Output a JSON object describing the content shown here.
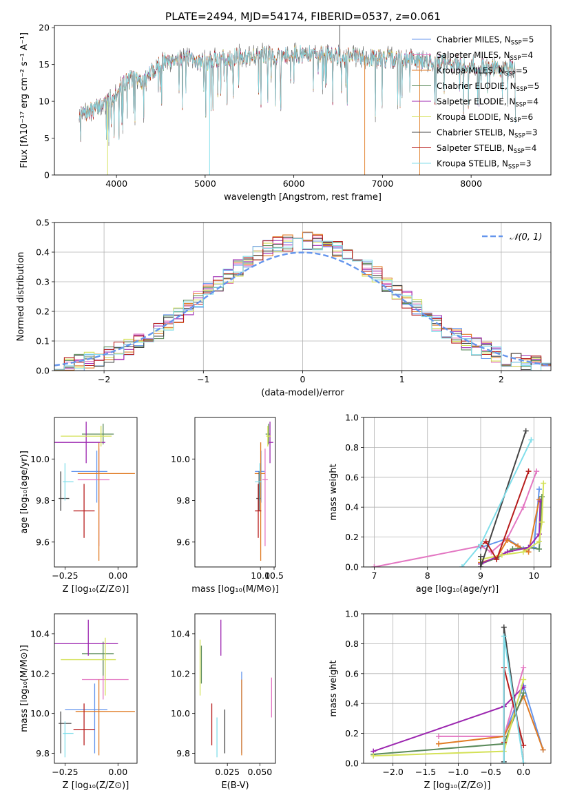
{
  "figure_title": "PLATE=2494, MJD=54174, FIBERID=0537, z=0.061",
  "series": [
    {
      "name": "Chabrier MILES",
      "nssp": "5",
      "color": "#6495ed"
    },
    {
      "name": "Salpeter MILES",
      "nssp": "4",
      "color": "#e377c2"
    },
    {
      "name": "Kroupa MILES",
      "nssp": "5",
      "color": "#e07b24"
    },
    {
      "name": "Chabrier ELODIE",
      "nssp": "5",
      "color": "#5a8a5a"
    },
    {
      "name": "Salpeter ELODIE",
      "nssp": "4",
      "color": "#9c27b0"
    },
    {
      "name": "Kroupa ELODIE",
      "nssp": "6",
      "color": "#d4e157"
    },
    {
      "name": "Chabrier STELIB",
      "nssp": "3",
      "color": "#444444"
    },
    {
      "name": "Salpeter STELIB",
      "nssp": "4",
      "color": "#b71c1c"
    },
    {
      "name": "Kroupa STELIB",
      "nssp": "3",
      "color": "#80deea"
    }
  ],
  "chart_data": [
    {
      "id": "spectrum",
      "type": "line",
      "xlabel": "wavelength [Angstrom, rest frame]",
      "ylabel": "Flux [fλ10⁻¹⁷ erg cm⁻² s⁻¹ A⁻¹]",
      "xlim": [
        3300,
        8900
      ],
      "ylim": [
        0,
        20.3
      ],
      "xticks": [
        4000,
        5000,
        6000,
        7000,
        8000
      ],
      "yticks": [
        0,
        5,
        10,
        15,
        20
      ],
      "grid": false,
      "legend": "right",
      "continuum": {
        "x": [
          3560,
          3700,
          3800,
          3900,
          4000,
          4100,
          4200,
          4300,
          4400,
          4500,
          4600,
          4800,
          5000,
          5200,
          5400,
          5600,
          5800,
          6000,
          6200,
          6400,
          6600,
          6800,
          7000,
          7200,
          7400,
          7600,
          7800,
          8000,
          8200,
          8400
        ],
        "y": [
          8.0,
          8.5,
          9.3,
          10.0,
          11.2,
          12.6,
          13.2,
          12.6,
          14.0,
          15.2,
          15.8,
          15.7,
          15.3,
          15.9,
          16.0,
          16.2,
          16.3,
          16.4,
          16.3,
          16.3,
          16.2,
          16.0,
          15.8,
          15.7,
          15.6,
          15.3,
          15.1,
          14.8,
          14.6,
          14.3
        ]
      },
      "x_start": 3580,
      "x_end": 8500
    },
    {
      "id": "residuals",
      "type": "histogram",
      "xlabel": "(data-model)/error",
      "ylabel": "Normed distribution",
      "xlim": [
        -2.5,
        2.5
      ],
      "ylim": [
        0,
        0.5
      ],
      "xticks": [
        -2,
        -1,
        0,
        1,
        2
      ],
      "yticks": [
        0.0,
        0.1,
        0.2,
        0.3,
        0.4,
        0.5
      ],
      "grid": true,
      "legend": "top-right",
      "reference": {
        "name": "𝒩(0, 1)",
        "mean": 0,
        "sigma": 1,
        "color": "#6495ed"
      },
      "bin_width": 0.1
    },
    {
      "id": "age_vs_Z",
      "type": "scatter",
      "xlabel": "Z [log₁₀(Z/Z⊙)]",
      "ylabel": "age  [log₁₀(age/yr)]",
      "xlim": [
        -0.3,
        0.09
      ],
      "ylim": [
        9.48,
        10.2
      ],
      "xticks": [
        -0.25,
        0.0
      ],
      "yticks": [
        9.6,
        9.8,
        10.0
      ],
      "points": [
        {
          "s": 0,
          "x": -0.1,
          "xe": [
            0.12,
            0.05
          ],
          "y": 9.94,
          "ye": [
            0.15,
            0.1
          ]
        },
        {
          "s": 1,
          "x": -0.09,
          "xe": [
            0.1,
            0.05
          ],
          "y": 9.9,
          "ye": [
            0.32,
            0.15
          ]
        },
        {
          "s": 2,
          "x": -0.09,
          "xe": [
            0.1,
            0.17
          ],
          "y": 9.93,
          "ye": [
            0.42,
            0.15
          ]
        },
        {
          "s": 3,
          "x": -0.07,
          "xe": [
            0.1,
            0.05
          ],
          "y": 10.12,
          "ye": [
            0.05,
            0.05
          ]
        },
        {
          "s": 4,
          "x": -0.15,
          "xe": [
            0.15,
            0.09
          ],
          "y": 10.08,
          "ye": [
            0.1,
            0.1
          ]
        },
        {
          "s": 5,
          "x": -0.08,
          "xe": [
            0.19,
            0.05
          ],
          "y": 10.11,
          "ye": [
            0.05,
            0.05
          ]
        },
        {
          "s": 6,
          "x": -0.27,
          "xe": [
            0.01,
            0.04
          ],
          "y": 9.81,
          "ye": [
            0.06,
            0.13
          ]
        },
        {
          "s": 7,
          "x": -0.16,
          "xe": [
            0.05,
            0.05
          ],
          "y": 9.75,
          "ye": [
            0.13,
            0.13
          ]
        },
        {
          "s": 8,
          "x": -0.25,
          "xe": [
            0.01,
            0.04
          ],
          "y": 9.89,
          "ye": [
            0.09,
            0.09
          ]
        }
      ]
    },
    {
      "id": "age_vs_mass",
      "type": "scatter",
      "xlabel": "mass [log₁₀(M/M⊙)]",
      "ylabel": "",
      "xlim": [
        7.6,
        10.55
      ],
      "ylim": [
        9.48,
        10.2
      ],
      "xticks": [
        10.0,
        10.5
      ],
      "yticks": [
        9.6,
        9.8,
        10.0
      ],
      "points": [
        {
          "s": 0,
          "x": 10.02,
          "xe": [
            0.22,
            0.13
          ],
          "y": 9.94,
          "ye": [
            0.15,
            0.1
          ]
        },
        {
          "s": 1,
          "x": 10.17,
          "xe": [
            0.1,
            0.1
          ],
          "y": 9.9,
          "ye": [
            0.32,
            0.15
          ]
        },
        {
          "s": 2,
          "x": 10.01,
          "xe": [
            0.22,
            0.16
          ],
          "y": 9.93,
          "ye": [
            0.42,
            0.15
          ]
        },
        {
          "s": 3,
          "x": 10.3,
          "xe": [
            0.11,
            0.06
          ],
          "y": 10.12,
          "ye": [
            0.05,
            0.05
          ]
        },
        {
          "s": 4,
          "x": 10.35,
          "xe": [
            0.06,
            0.12
          ],
          "y": 10.08,
          "ye": [
            0.1,
            0.1
          ]
        },
        {
          "s": 5,
          "x": 10.27,
          "xe": [
            0.06,
            0.11
          ],
          "y": 10.11,
          "ye": [
            0.05,
            0.05
          ]
        },
        {
          "s": 6,
          "x": 9.95,
          "xe": [
            0.1,
            0.06
          ],
          "y": 9.81,
          "ye": [
            0.06,
            0.13
          ]
        },
        {
          "s": 7,
          "x": 9.92,
          "xe": [
            0.12,
            0.11
          ],
          "y": 9.75,
          "ye": [
            0.13,
            0.13
          ]
        },
        {
          "s": 8,
          "x": 9.98,
          "xe": [
            0.18,
            0.06
          ],
          "y": 9.89,
          "ye": [
            0.09,
            0.09
          ]
        }
      ]
    },
    {
      "id": "weight_vs_age",
      "type": "line",
      "xlabel": "age  [log₁₀(age/yr)]",
      "ylabel": "mass weight",
      "xlim": [
        6.8,
        10.32
      ],
      "ylim": [
        0,
        1.0
      ],
      "xticks": [
        7,
        8,
        9,
        10
      ],
      "yticks": [
        0.0,
        0.2,
        0.4,
        0.6,
        0.8,
        1.0
      ],
      "grid": true,
      "lines": [
        {
          "s": 0,
          "x": [
            9.0,
            9.5,
            9.8,
            10.0,
            10.1
          ],
          "y": [
            0.13,
            0.19,
            0.12,
            0.13,
            0.52
          ]
        },
        {
          "s": 1,
          "x": [
            7.0,
            9.0,
            9.2,
            9.5,
            9.8,
            10.05
          ],
          "y": [
            0.0,
            0.14,
            0.1,
            0.19,
            0.4,
            0.64
          ]
        },
        {
          "s": 2,
          "x": [
            9.0,
            9.3,
            9.5,
            9.7,
            9.9,
            10.1
          ],
          "y": [
            0.03,
            0.06,
            0.18,
            0.14,
            0.1,
            0.45
          ]
        },
        {
          "s": 3,
          "x": [
            9.0,
            9.3,
            9.6,
            9.9,
            10.1,
            10.15
          ],
          "y": [
            0.02,
            0.06,
            0.12,
            0.13,
            0.12,
            0.47
          ]
        },
        {
          "s": 4,
          "x": [
            9.0,
            9.5,
            9.9,
            10.1,
            10.12
          ],
          "y": [
            0.02,
            0.1,
            0.13,
            0.22,
            0.44
          ]
        },
        {
          "s": 5,
          "x": [
            9.0,
            9.4,
            9.8,
            10.1,
            10.15,
            10.18
          ],
          "y": [
            0.05,
            0.08,
            0.1,
            0.17,
            0.3,
            0.56
          ]
        },
        {
          "s": 6,
          "x": [
            9.0,
            9.0,
            9.85
          ],
          "y": [
            0.07,
            0.0,
            0.91
          ]
        },
        {
          "s": 7,
          "x": [
            9.0,
            9.1,
            9.3,
            9.9
          ],
          "y": [
            0.14,
            0.17,
            0.05,
            0.64
          ]
        },
        {
          "s": 8,
          "x": [
            8.65,
            9.0,
            9.95
          ],
          "y": [
            0.0,
            0.15,
            0.85
          ]
        }
      ]
    },
    {
      "id": "mass_vs_Z",
      "type": "scatter",
      "xlabel": "Z [log₁₀(Z/Z⊙)]",
      "ylabel": "mass [log₁₀(M/M⊙)]",
      "xlim": [
        -0.3,
        0.09
      ],
      "ylim": [
        9.75,
        10.5
      ],
      "xticks": [
        -0.25,
        0.0
      ],
      "yticks": [
        9.8,
        10.0,
        10.2,
        10.4
      ],
      "points": [
        {
          "s": 0,
          "x": -0.11,
          "xe": [
            0.14,
            0.06
          ],
          "y": 10.02,
          "ye": [
            0.22,
            0.13
          ]
        },
        {
          "s": 1,
          "x": -0.07,
          "xe": [
            0.1,
            0.12
          ],
          "y": 10.17,
          "ye": [
            0.1,
            0.1
          ]
        },
        {
          "s": 2,
          "x": -0.09,
          "xe": [
            0.11,
            0.17
          ],
          "y": 10.01,
          "ye": [
            0.22,
            0.16
          ]
        },
        {
          "s": 3,
          "x": -0.07,
          "xe": [
            0.1,
            0.05
          ],
          "y": 10.3,
          "ye": [
            0.11,
            0.06
          ]
        },
        {
          "s": 4,
          "x": -0.14,
          "xe": [
            0.16,
            0.14
          ],
          "y": 10.35,
          "ye": [
            0.06,
            0.12
          ]
        },
        {
          "s": 5,
          "x": -0.06,
          "xe": [
            0.21,
            0.05
          ],
          "y": 10.27,
          "ye": [
            0.18,
            0.11
          ]
        },
        {
          "s": 6,
          "x": -0.27,
          "xe": [
            0.01,
            0.05
          ],
          "y": 9.95,
          "ye": [
            0.15,
            0.06
          ]
        },
        {
          "s": 7,
          "x": -0.16,
          "xe": [
            0.05,
            0.05
          ],
          "y": 9.92,
          "ye": [
            0.08,
            0.13
          ]
        },
        {
          "s": 8,
          "x": -0.25,
          "xe": [
            0.01,
            0.04
          ],
          "y": 9.9,
          "ye": [
            0.12,
            0.06
          ]
        }
      ]
    },
    {
      "id": "mass_vs_ebv",
      "type": "scatter",
      "xlabel": "E(B-V)",
      "ylabel": "",
      "xlim": [
        0.0,
        0.062
      ],
      "ylim": [
        9.75,
        10.5
      ],
      "xticks": [
        0.025,
        0.05
      ],
      "yticks": [
        9.8,
        10.0,
        10.2,
        10.4
      ],
      "points": [
        {
          "s": 0,
          "x": 0.036,
          "y": 10.02,
          "ye": [
            0.22,
            0.19
          ]
        },
        {
          "s": 1,
          "x": 0.059,
          "y": 10.08,
          "ye": [
            0.1,
            0.1
          ]
        },
        {
          "s": 2,
          "x": 0.036,
          "y": 10.01,
          "ye": [
            0.22,
            0.16
          ]
        },
        {
          "s": 3,
          "x": 0.005,
          "y": 10.2,
          "ye": [
            0.05,
            0.14
          ]
        },
        {
          "s": 4,
          "x": 0.02,
          "y": 10.35,
          "ye": [
            0.06,
            0.12
          ]
        },
        {
          "s": 5,
          "x": 0.004,
          "y": 10.23,
          "ye": [
            0.14,
            0.14
          ]
        },
        {
          "s": 6,
          "x": 0.023,
          "y": 9.91,
          "ye": [
            0.11,
            0.11
          ]
        },
        {
          "s": 7,
          "x": 0.013,
          "y": 9.91,
          "ye": [
            0.07,
            0.14
          ]
        },
        {
          "s": 8,
          "x": 0.017,
          "y": 9.89,
          "ye": [
            0.11,
            0.09
          ]
        }
      ]
    },
    {
      "id": "weight_vs_Z",
      "type": "line",
      "xlabel": "Z [log₁₀(Z/Z⊙)]",
      "ylabel": "mass weight",
      "xlim": [
        -2.45,
        0.42
      ],
      "ylim": [
        0,
        1.0
      ],
      "xticks": [
        -2.0,
        -1.5,
        -1.0,
        -0.5,
        0.0
      ],
      "yticks": [
        0.0,
        0.2,
        0.4,
        0.6,
        0.8,
        1.0
      ],
      "grid": true,
      "lines": [
        {
          "s": 0,
          "x": [
            -0.3,
            0.0,
            0.3
          ],
          "y": [
            0.18,
            0.52,
            0.09
          ]
        },
        {
          "s": 1,
          "x": [
            -1.3,
            -0.3,
            0.0
          ],
          "y": [
            0.18,
            0.18,
            0.64
          ]
        },
        {
          "s": 2,
          "x": [
            -1.3,
            -0.3,
            0.0,
            0.3
          ],
          "y": [
            0.13,
            0.18,
            0.45,
            0.09
          ]
        },
        {
          "s": 3,
          "x": [
            -2.3,
            -0.3,
            0.0
          ],
          "y": [
            0.06,
            0.13,
            0.47
          ]
        },
        {
          "s": 4,
          "x": [
            -2.3,
            -0.3,
            0.0
          ],
          "y": [
            0.08,
            0.38,
            0.51
          ]
        },
        {
          "s": 5,
          "x": [
            -2.3,
            -0.3,
            0.0
          ],
          "y": [
            0.05,
            0.08,
            0.56
          ]
        },
        {
          "s": 6,
          "x": [
            -0.3,
            -0.3,
            0.0
          ],
          "y": [
            0.01,
            0.91,
            0.0
          ]
        },
        {
          "s": 7,
          "x": [
            -0.3,
            -0.3,
            0.0
          ],
          "y": [
            0.14,
            0.64,
            0.12
          ]
        },
        {
          "s": 8,
          "x": [
            -0.3,
            -0.3,
            0.0
          ],
          "y": [
            0.0,
            0.85,
            0.0
          ]
        }
      ]
    }
  ]
}
